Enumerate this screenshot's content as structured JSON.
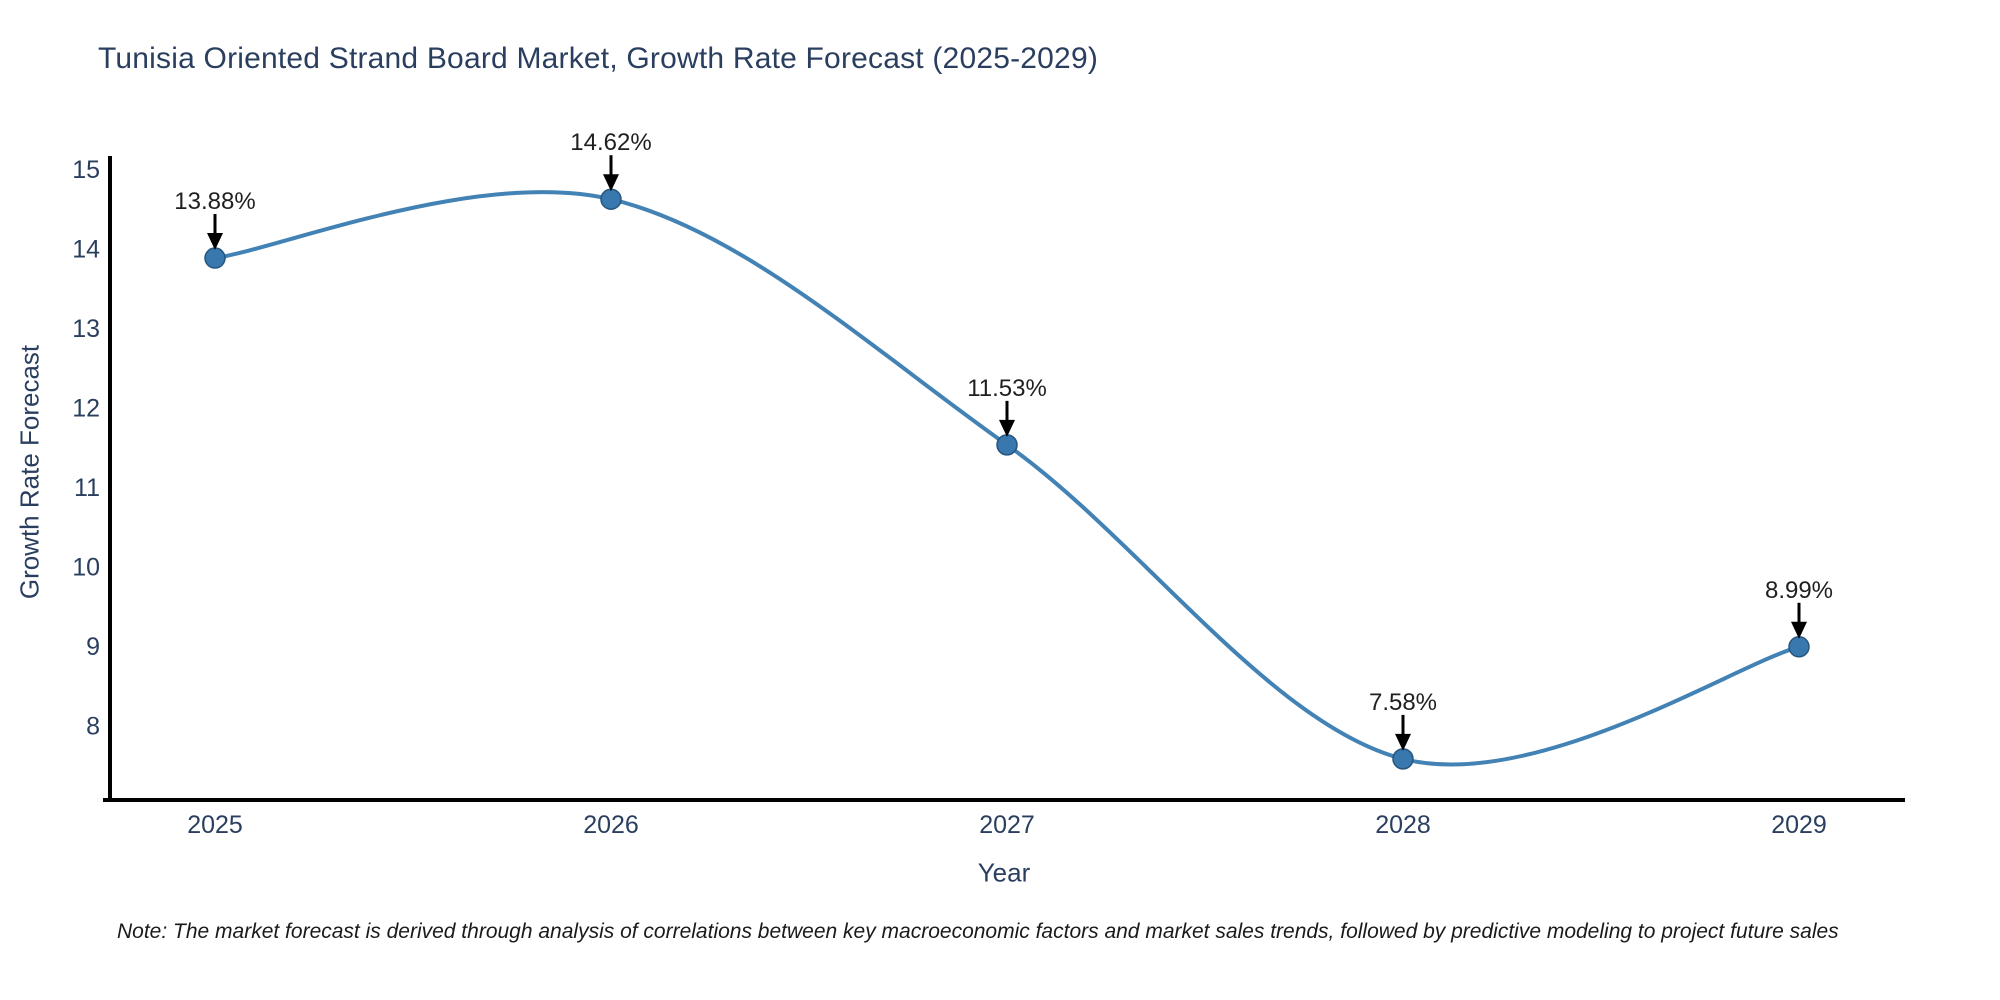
{
  "chart": {
    "title": "Tunisia Oriented Strand Board Market, Growth Rate Forecast (2025-2029)",
    "xlabel": "Year",
    "ylabel": "Growth Rate Forecast",
    "note": "Note: The market forecast is derived through analysis of correlations between key macroeconomic factors and market sales trends, followed by predictive modeling to project future sales"
  },
  "chart_data": {
    "type": "line",
    "title": "Tunisia Oriented Strand Board Market, Growth Rate Forecast (2025-2029)",
    "xlabel": "Year",
    "ylabel": "Growth Rate Forecast",
    "x": [
      2025,
      2026,
      2027,
      2028,
      2029
    ],
    "values": [
      13.88,
      14.62,
      11.53,
      7.58,
      8.99
    ],
    "point_labels": [
      "13.88%",
      "14.62%",
      "11.53%",
      "7.58%",
      "8.99%"
    ],
    "yticks": [
      8,
      9,
      10,
      11,
      12,
      13,
      14,
      15
    ],
    "ylim": [
      7.06,
      15.13
    ],
    "smooth": true,
    "grid": false,
    "legend": "none",
    "colors": {
      "line": "#4282b4",
      "marker_fill": "#3878ae",
      "marker_edge": "#26567e",
      "arrow": "#000000",
      "axis": "#000000",
      "tick_text": "#2a3f5f",
      "title_text": "#2a3f5f",
      "annotation_text": "#1f1f1f"
    }
  }
}
